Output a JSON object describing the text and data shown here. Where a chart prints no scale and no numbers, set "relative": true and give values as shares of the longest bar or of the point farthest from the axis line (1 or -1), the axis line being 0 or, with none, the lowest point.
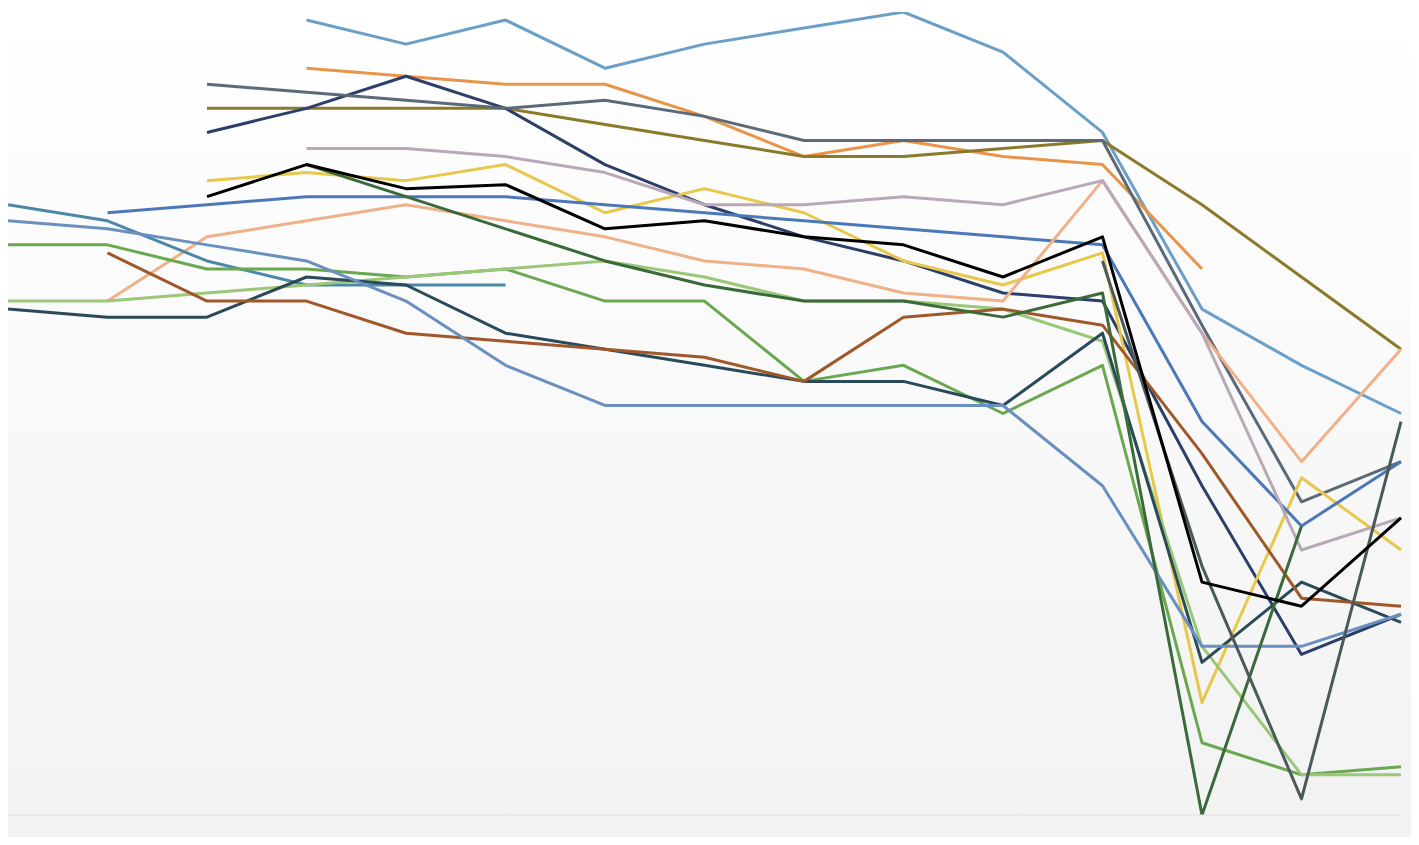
{
  "chart_data": {
    "type": "line",
    "relative": true,
    "categories": [
      null,
      null,
      null,
      null,
      null,
      null,
      null,
      null,
      null,
      null,
      null,
      null,
      null,
      null,
      null
    ],
    "series": [
      {
        "color": "#6a9fc8",
        "values": [
          null,
          null,
          null,
          0.99,
          0.96,
          0.99,
          0.93,
          0.96,
          0.98,
          1,
          0.95,
          0.85,
          0.63,
          0.56,
          0.5
        ]
      },
      {
        "color": "#e8954a",
        "values": [
          null,
          null,
          null,
          0.93,
          0.92,
          0.91,
          0.91,
          0.87,
          0.82,
          0.84,
          0.82,
          0.81,
          0.68,
          null,
          null
        ]
      },
      {
        "color": "#8a7a2a",
        "values": [
          null,
          null,
          0.88,
          0.88,
          0.88,
          0.88,
          0.86,
          0.84,
          0.82,
          0.82,
          0.83,
          0.84,
          0.76,
          0.67,
          0.58
        ]
      },
      {
        "color": "#2c3e6a",
        "values": [
          null,
          null,
          0.85,
          0.88,
          0.92,
          0.88,
          0.81,
          0.76,
          0.72,
          0.69,
          0.65,
          0.64,
          0.41,
          0.2,
          0.25
        ]
      },
      {
        "color": "#5a6a78",
        "values": [
          null,
          null,
          0.91,
          0.9,
          0.89,
          0.88,
          0.89,
          0.87,
          0.84,
          0.84,
          0.84,
          0.84,
          0.61,
          0.39,
          0.44
        ]
      },
      {
        "color": "#e8c84a",
        "values": [
          null,
          null,
          0.79,
          0.8,
          0.79,
          0.81,
          0.75,
          0.78,
          0.75,
          0.69,
          0.66,
          0.7,
          0.14,
          0.42,
          0.33
        ]
      },
      {
        "color": "#4a78b8",
        "values": [
          null,
          0.75,
          0.76,
          0.77,
          0.77,
          0.77,
          0.76,
          0.75,
          0.74,
          0.73,
          0.72,
          0.71,
          0.49,
          0.36,
          0.44
        ]
      },
      {
        "color": "#f0b088",
        "values": [
          null,
          0.64,
          0.72,
          0.74,
          0.76,
          0.74,
          0.72,
          0.69,
          0.68,
          0.65,
          0.64,
          0.79,
          0.6,
          0.44,
          0.58
        ]
      },
      {
        "color": "#b8a8b8",
        "values": [
          null,
          null,
          null,
          0.83,
          0.83,
          0.82,
          0.8,
          0.76,
          0.76,
          0.77,
          0.76,
          0.79,
          0.6,
          0.33,
          0.37
        ]
      },
      {
        "color": "#4a88a8",
        "values": [
          0.76,
          0.74,
          0.69,
          0.66,
          0.66,
          0.66,
          null,
          null,
          null,
          null,
          null,
          null,
          null,
          null,
          null
        ]
      },
      {
        "color": "#6aa850",
        "values": [
          0.71,
          0.71,
          0.68,
          0.68,
          0.67,
          0.68,
          0.64,
          0.64,
          0.54,
          0.56,
          0.5,
          0.56,
          0.09,
          0.05,
          0.06
        ]
      },
      {
        "color": "#9ac878",
        "values": [
          0.64,
          0.64,
          0.65,
          0.66,
          0.67,
          0.68,
          0.69,
          0.67,
          0.64,
          0.64,
          0.63,
          0.59,
          0.21,
          0.05,
          0.05
        ]
      },
      {
        "color": "#2a4a5a",
        "values": [
          0.63,
          0.62,
          0.62,
          0.67,
          0.66,
          0.6,
          0.58,
          0.56,
          0.54,
          0.54,
          0.51,
          0.6,
          0.19,
          0.29,
          0.24
        ]
      },
      {
        "color": "#a0582a",
        "values": [
          null,
          0.7,
          0.64,
          0.64,
          0.6,
          0.59,
          0.58,
          0.57,
          0.54,
          0.62,
          0.63,
          0.61,
          0.45,
          0.27,
          0.26
        ]
      },
      {
        "color": "#6a90c0",
        "values": [
          0.74,
          0.73,
          0.71,
          0.69,
          0.64,
          0.56,
          0.51,
          0.51,
          0.51,
          0.51,
          0.51,
          0.41,
          0.21,
          0.21,
          0.25
        ]
      },
      {
        "color": "#3a6a3a",
        "values": [
          null,
          null,
          null,
          0.81,
          0.77,
          0.73,
          0.69,
          0.66,
          0.64,
          0.64,
          0.62,
          0.65,
          0.0,
          0.36,
          null
        ]
      },
      {
        "color": "#4a5a5a",
        "values": [
          null,
          null,
          null,
          null,
          null,
          null,
          null,
          null,
          null,
          null,
          null,
          0.69,
          0.31,
          0.02,
          0.49
        ]
      },
      {
        "color": "#000000",
        "values": [
          null,
          null,
          0.77,
          0.81,
          0.78,
          0.785,
          0.73,
          0.74,
          0.72,
          0.71,
          0.67,
          0.72,
          0.29,
          0.26,
          0.37
        ]
      }
    ]
  }
}
